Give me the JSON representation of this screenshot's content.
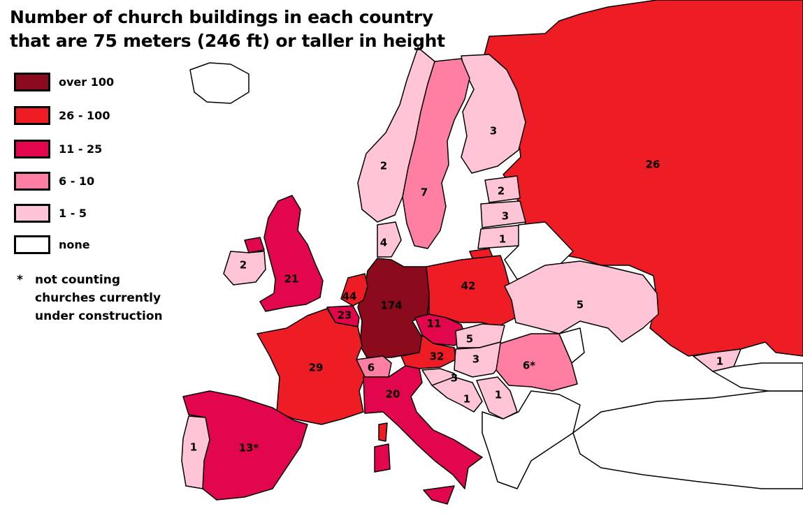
{
  "title": {
    "line1": "Number of church buildings in each country",
    "line2": "that are 75 meters (246 ft) or taller in height"
  },
  "colors": {
    "over_100": "#8b0a1c",
    "26_100": "#ee1c25",
    "11_25": "#e2064d",
    "6_10": "#ff7fa3",
    "1_5": "#ffc5d6",
    "none": "#ffffff"
  },
  "legend": [
    {
      "key": "over_100",
      "label": "over 100"
    },
    {
      "key": "26_100",
      "label": "26 - 100"
    },
    {
      "key": "11_25",
      "label": "11 - 25"
    },
    {
      "key": "6_10",
      "label": "6 - 10"
    },
    {
      "key": "1_5",
      "label": "1 - 5"
    },
    {
      "key": "none",
      "label": "none"
    }
  ],
  "note": {
    "symbol": "*",
    "line1": "not counting",
    "line2": "churches currently",
    "line3": "under construction"
  },
  "labels": {
    "russia": "26",
    "finland": "3",
    "sweden": "7",
    "norway": "2",
    "estonia": "2",
    "latvia": "3",
    "lithuania": "1",
    "denmark": "4",
    "poland": "42",
    "germany": "174",
    "netherlands": "44",
    "belgium": "23",
    "uk": "21",
    "ireland": "2",
    "france": "29",
    "czechia": "11",
    "slovakia": "5",
    "austria": "32",
    "hungary": "3",
    "switzerland": "6",
    "italy": "20",
    "slovenia": "3",
    "croatia": "1",
    "serbia": "1",
    "romania": "6*",
    "ukraine": "5",
    "georgia": "1",
    "spain": "13*",
    "portugal": "1"
  }
}
